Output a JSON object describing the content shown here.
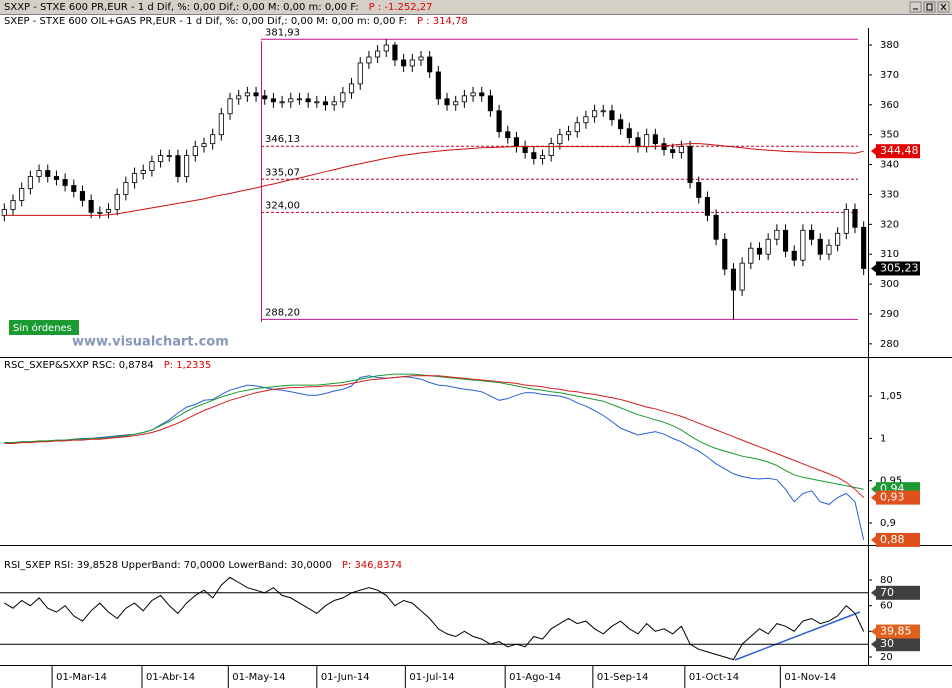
{
  "window_title": {
    "text": "SXXP - STXE 600 PR,EUR -  1 d Dif, %: 0,00 Dif,: 0,00 M: 0,00 m: 0,00 F:",
    "price": "P : -1.252,27"
  },
  "watermark": "www.visualchart.com",
  "orders_badge": "Sin órdenes",
  "chart_data": [
    {
      "type": "candlestick",
      "title": "SXEP - STXE 600 OIL+GAS PR,EUR -  1 d Dif, %: 0,00 Dif,: 0,00 M: 0,00 m: 0,00 F:",
      "title_price": "P : 314,78",
      "open": [
        323,
        325,
        328,
        332,
        336,
        338,
        336,
        335,
        333,
        331,
        328,
        324,
        324,
        325,
        330,
        334,
        337,
        338,
        341,
        343,
        343,
        336,
        343,
        346,
        347,
        350,
        357,
        362,
        363,
        364,
        363,
        362,
        361,
        361,
        362,
        362,
        361,
        361,
        360,
        361,
        364,
        367,
        374,
        376,
        378,
        380,
        375,
        373,
        375,
        376,
        371,
        362,
        360,
        361,
        363,
        364,
        363,
        358,
        351,
        349,
        346,
        344,
        342,
        343,
        347,
        350,
        351,
        354,
        356,
        358,
        358,
        355,
        352,
        349,
        346,
        350,
        347,
        345,
        344,
        346,
        334,
        329,
        323,
        315,
        305,
        298,
        307,
        312,
        310,
        315,
        318,
        311,
        308,
        318,
        315,
        310,
        313,
        317,
        325,
        319
      ],
      "high": [
        327,
        330,
        334,
        338,
        340,
        340,
        338,
        337,
        335,
        333,
        330,
        326,
        327,
        332,
        336,
        339,
        340,
        343,
        345,
        345,
        345,
        345,
        348,
        349,
        352,
        359,
        364,
        365,
        366,
        366,
        365,
        364,
        363,
        364,
        364,
        364,
        363,
        363,
        363,
        366,
        369,
        376,
        378,
        380,
        381.93,
        381,
        377,
        377,
        378,
        378,
        373,
        364,
        363,
        365,
        366,
        366,
        365,
        360,
        353,
        351,
        348,
        346,
        345,
        349,
        352,
        353,
        356,
        358,
        360,
        360,
        360,
        357,
        354,
        351,
        352,
        352,
        349,
        347,
        348,
        348,
        336,
        331,
        325,
        317,
        307,
        309,
        314,
        314,
        317,
        320,
        320,
        313,
        320,
        320,
        317,
        315,
        319,
        327,
        327,
        321
      ],
      "low": [
        321,
        323,
        326,
        330,
        334,
        334,
        333,
        331,
        329,
        326,
        322,
        322,
        322,
        323,
        328,
        332,
        335,
        336,
        339,
        341,
        334,
        334,
        341,
        344,
        345,
        348,
        355,
        360,
        361,
        361,
        360,
        359,
        359,
        359,
        360,
        359,
        359,
        358,
        358,
        359,
        362,
        365,
        372,
        374,
        376,
        373,
        371,
        371,
        373,
        369,
        360,
        358,
        358,
        359,
        361,
        361,
        356,
        349,
        347,
        344,
        342,
        340,
        340,
        341,
        345,
        348,
        349,
        352,
        354,
        356,
        353,
        350,
        347,
        344,
        344,
        345,
        343,
        342,
        342,
        332,
        327,
        321,
        313,
        303,
        288.2,
        296,
        305,
        308,
        308,
        313,
        309,
        306,
        306,
        313,
        308,
        308,
        311,
        315,
        317,
        303
      ],
      "close": [
        325,
        328,
        332,
        336,
        338,
        336,
        335,
        333,
        331,
        328,
        324,
        324,
        325,
        330,
        334,
        337,
        338,
        341,
        343,
        343,
        336,
        343,
        346,
        347,
        350,
        357,
        362,
        363,
        364,
        363,
        362,
        361,
        361,
        362,
        362,
        361,
        361,
        360,
        361,
        364,
        367,
        374,
        376,
        378,
        380,
        375,
        373,
        375,
        376,
        371,
        362,
        360,
        361,
        363,
        364,
        363,
        358,
        351,
        349,
        346,
        344,
        342,
        343,
        347,
        350,
        351,
        354,
        356,
        358,
        358,
        355,
        352,
        349,
        346,
        350,
        347,
        345,
        344,
        346,
        334,
        329,
        323,
        315,
        305,
        298,
        307,
        312,
        310,
        315,
        318,
        311,
        308,
        318,
        315,
        310,
        313,
        317,
        325,
        319,
        305.23
      ],
      "color_up": "#ffffff",
      "color_down": "#000000",
      "color_edge": "#000000",
      "ma": {
        "color": "#cc1010",
        "values": [
          323,
          323,
          323,
          323,
          323,
          323,
          323,
          323,
          323,
          323,
          323,
          323,
          323.2,
          323.5,
          324,
          324.5,
          325,
          325.5,
          326,
          326.5,
          327,
          327.5,
          328,
          328.5,
          329.2,
          329.8,
          330.3,
          331,
          331.6,
          332.2,
          332.9,
          333.5,
          334.2,
          334.9,
          335.5,
          336.2,
          336.9,
          337.6,
          338.3,
          339,
          339.7,
          340.3,
          340.9,
          341.5,
          342.1,
          342.6,
          343.1,
          343.5,
          343.9,
          344.2,
          344.5,
          344.8,
          345,
          345.2,
          345.4,
          345.6,
          345.7,
          345.8,
          345.9,
          346,
          346,
          346,
          346,
          346,
          346,
          346,
          346,
          346,
          346,
          346,
          346,
          346,
          346,
          346,
          346,
          346,
          346.3,
          346.5,
          346.8,
          347,
          347,
          346.8,
          346.5,
          346.2,
          345.9,
          345.6,
          345.3,
          345,
          344.8,
          344.6,
          344.4,
          344.3,
          344.2,
          344.1,
          344,
          344,
          344,
          343.9,
          343.8,
          344.48
        ]
      },
      "levels": [
        {
          "value": 381.93,
          "label": "381,93",
          "color": "#c0148c",
          "dashed": false
        },
        {
          "value": 346.13,
          "label": "346,13",
          "color": "#c00030",
          "dashed": true
        },
        {
          "value": 335.07,
          "label": "335,07",
          "color": "#c00030",
          "dashed": true
        },
        {
          "value": 324.0,
          "label": "324,00",
          "color": "#c00030",
          "dashed": true
        },
        {
          "value": 288.2,
          "label": "288,20",
          "color": "#c0148c",
          "dashed": false
        }
      ],
      "markers": [
        {
          "value": 344.48,
          "label": "344,48",
          "color": "#e00000"
        },
        {
          "value": 305.23,
          "label": "305,23",
          "color": "#000000"
        }
      ],
      "xlim": [
        -0.5,
        99.5
      ],
      "ylim": [
        275.6,
        385.7
      ],
      "yticks": [
        280,
        290,
        300,
        310,
        320,
        330,
        340,
        350,
        360,
        370,
        380
      ]
    },
    {
      "type": "line",
      "title": "RSC_SXEP&SXXP RSC: 0,8784",
      "title_price": "P: 1,2335",
      "series": [
        {
          "color": "#2a5fd8",
          "values": [
            0.995,
            0.995,
            0.996,
            0.996,
            0.996,
            0.997,
            0.997,
            0.998,
            0.999,
            1.0,
            1.0,
            1.001,
            1.002,
            1.003,
            1.004,
            1.005,
            1.007,
            1.01,
            1.016,
            1.022,
            1.03,
            1.037,
            1.04,
            1.045,
            1.046,
            1.052,
            1.057,
            1.06,
            1.063,
            1.062,
            1.06,
            1.058,
            1.057,
            1.055,
            1.053,
            1.051,
            1.051,
            1.053,
            1.056,
            1.058,
            1.062,
            1.072,
            1.074,
            1.072,
            1.071,
            1.072,
            1.073,
            1.072,
            1.07,
            1.066,
            1.063,
            1.062,
            1.06,
            1.058,
            1.057,
            1.055,
            1.05,
            1.045,
            1.047,
            1.051,
            1.054,
            1.054,
            1.052,
            1.051,
            1.05,
            1.047,
            1.042,
            1.038,
            1.033,
            1.027,
            1.02,
            1.012,
            1.008,
            1.004,
            1.006,
            1.008,
            1.005,
            1.0,
            0.996,
            0.99,
            0.985,
            0.978,
            0.97,
            0.964,
            0.958,
            0.955,
            0.953,
            0.952,
            0.953,
            0.951,
            0.94,
            0.925,
            0.935,
            0.938,
            0.925,
            0.922,
            0.93,
            0.935,
            0.925,
            0.88
          ]
        },
        {
          "color": "#1a9a30",
          "values": [
            0.995,
            0.995,
            0.996,
            0.996,
            0.997,
            0.997,
            0.998,
            0.998,
            0.999,
            0.999,
            1.0,
            1.0,
            1.001,
            1.002,
            1.003,
            1.005,
            1.007,
            1.01,
            1.015,
            1.02,
            1.026,
            1.032,
            1.037,
            1.041,
            1.045,
            1.049,
            1.052,
            1.055,
            1.057,
            1.059,
            1.06,
            1.061,
            1.062,
            1.063,
            1.063,
            1.063,
            1.063,
            1.064,
            1.065,
            1.066,
            1.068,
            1.07,
            1.072,
            1.074,
            1.075,
            1.076,
            1.076,
            1.076,
            1.075,
            1.074,
            1.073,
            1.072,
            1.071,
            1.07,
            1.069,
            1.068,
            1.067,
            1.066,
            1.064,
            1.062,
            1.06,
            1.058,
            1.057,
            1.055,
            1.054,
            1.052,
            1.05,
            1.048,
            1.046,
            1.044,
            1.04,
            1.036,
            1.032,
            1.028,
            1.025,
            1.022,
            1.019,
            1.015,
            1.01,
            1.003,
            0.997,
            0.992,
            0.988,
            0.985,
            0.982,
            0.979,
            0.977,
            0.975,
            0.972,
            0.968,
            0.962,
            0.957,
            0.954,
            0.952,
            0.95,
            0.948,
            0.946,
            0.944,
            0.942,
            0.94
          ]
        },
        {
          "color": "#d42020",
          "values": [
            0.994,
            0.994,
            0.995,
            0.995,
            0.996,
            0.996,
            0.997,
            0.997,
            0.998,
            0.998,
            0.999,
            0.999,
            1.0,
            1.001,
            1.002,
            1.003,
            1.005,
            1.007,
            1.01,
            1.014,
            1.018,
            1.023,
            1.028,
            1.033,
            1.037,
            1.041,
            1.045,
            1.048,
            1.051,
            1.054,
            1.056,
            1.058,
            1.059,
            1.06,
            1.06,
            1.061,
            1.061,
            1.062,
            1.062,
            1.063,
            1.065,
            1.067,
            1.069,
            1.07,
            1.071,
            1.072,
            1.073,
            1.074,
            1.074,
            1.074,
            1.074,
            1.073,
            1.072,
            1.071,
            1.07,
            1.069,
            1.068,
            1.067,
            1.066,
            1.065,
            1.063,
            1.062,
            1.061,
            1.059,
            1.058,
            1.056,
            1.055,
            1.053,
            1.052,
            1.05,
            1.048,
            1.046,
            1.043,
            1.04,
            1.037,
            1.035,
            1.032,
            1.029,
            1.026,
            1.022,
            1.018,
            1.014,
            1.01,
            1.006,
            1.002,
            0.998,
            0.994,
            0.99,
            0.986,
            0.982,
            0.978,
            0.974,
            0.97,
            0.966,
            0.962,
            0.958,
            0.954,
            0.948,
            0.94,
            0.93
          ]
        }
      ],
      "markers": [
        {
          "value": 0.94,
          "label": "0,94",
          "color": "#1a9a30"
        },
        {
          "value": 0.93,
          "label": "0,93",
          "color": "#e0501c"
        },
        {
          "value": 0.88,
          "label": "0,88",
          "color": "#e0501c"
        }
      ],
      "xlim": [
        -0.5,
        99.5
      ],
      "ylim": [
        0.874,
        1.095
      ],
      "yticks": [
        {
          "value": 0.9,
          "label": "0,9"
        },
        {
          "value": 0.95,
          "label": "0,95"
        },
        1,
        {
          "value": 1.05,
          "label": "1,05"
        }
      ]
    },
    {
      "type": "line",
      "title": "RSI_SXEP RSI: 39,8528 UpperBand: 70,0000 LowerBand: 30,0000",
      "title_price": "P: 346,8374",
      "series": [
        {
          "color": "#000000",
          "values": [
            62,
            58,
            64,
            60,
            66,
            58,
            55,
            60,
            52,
            48,
            56,
            62,
            55,
            50,
            58,
            62,
            56,
            64,
            68,
            60,
            54,
            62,
            68,
            72,
            66,
            76,
            82,
            78,
            74,
            72,
            70,
            74,
            68,
            66,
            62,
            58,
            54,
            60,
            64,
            66,
            70,
            72,
            74,
            72,
            68,
            60,
            64,
            62,
            56,
            50,
            42,
            38,
            36,
            40,
            36,
            34,
            30,
            32,
            28,
            30,
            28,
            36,
            34,
            42,
            46,
            50,
            46,
            48,
            42,
            38,
            44,
            48,
            42,
            38,
            46,
            40,
            42,
            38,
            44,
            30,
            26,
            24,
            22,
            20,
            18,
            30,
            36,
            42,
            38,
            46,
            44,
            40,
            48,
            50,
            46,
            48,
            52,
            60,
            54,
            39.85
          ]
        }
      ],
      "bands": [
        70,
        30
      ],
      "markers": [
        {
          "value": 70,
          "label": "70",
          "color": "#404040"
        },
        {
          "value": 30,
          "label": "30",
          "color": "#404040"
        },
        {
          "value": 39.85,
          "label": "39,85",
          "color": "#e0601c"
        }
      ],
      "xlim": [
        -0.5,
        99.5
      ],
      "ylim": [
        13.8,
        97.1
      ],
      "yticks": [
        20,
        40,
        60,
        80
      ],
      "xticks": [
        {
          "value": 5.5,
          "label": "01-Mar-14"
        },
        {
          "value": 15.86,
          "label": "01-Abr-14"
        },
        {
          "value": 25.8,
          "label": "01-May-14"
        },
        {
          "value": 36.0,
          "label": "01-Jun-14"
        },
        {
          "value": 46.2,
          "label": "01-Jul-14"
        },
        {
          "value": 57.7,
          "label": "01-Ago-14"
        },
        {
          "value": 67.8,
          "label": "01-Sep-14"
        },
        {
          "value": 78.4,
          "label": "01-Oct-14"
        },
        {
          "value": 89.4,
          "label": "01-Nov-14"
        }
      ]
    }
  ]
}
